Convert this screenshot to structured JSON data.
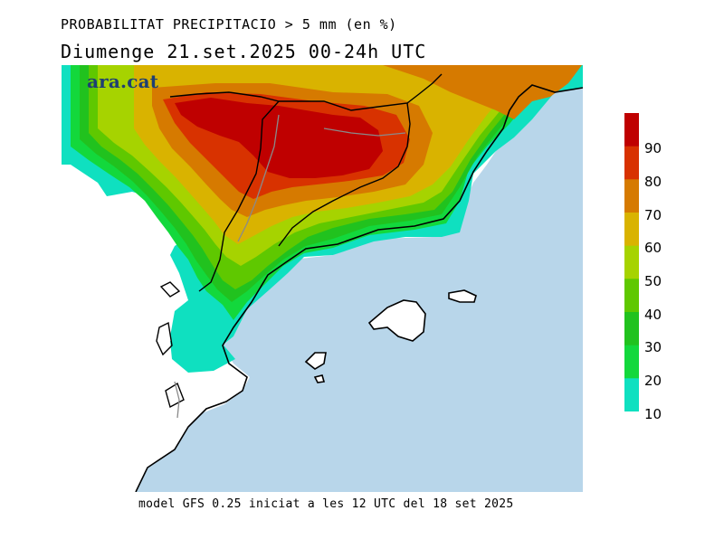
{
  "header": {
    "title": "PROBABILITAT PRECIPITACIO > 5 mm (en %)",
    "subtitle": "Diumenge  21.set.2025 00-24h UTC"
  },
  "logo": {
    "text": "ara.cat"
  },
  "footer": {
    "text": "model GFS 0.25 iniciat a les 12 UTC del 18 set 2025"
  },
  "legend": {
    "ticks": [
      "90",
      "80",
      "70",
      "60",
      "50",
      "40",
      "30",
      "20",
      "10"
    ],
    "colors": [
      "#bf0000",
      "#d83200",
      "#d67a00",
      "#d9b300",
      "#a6d300",
      "#5fc800",
      "#21c21e",
      "#13d83c",
      "#0fe0c0"
    ]
  },
  "map": {
    "sea_color": "#b8d6ea",
    "land_color": "#ffffff",
    "icons": [
      "coastline",
      "border-lines",
      "precipitation-probability-shading"
    ]
  }
}
